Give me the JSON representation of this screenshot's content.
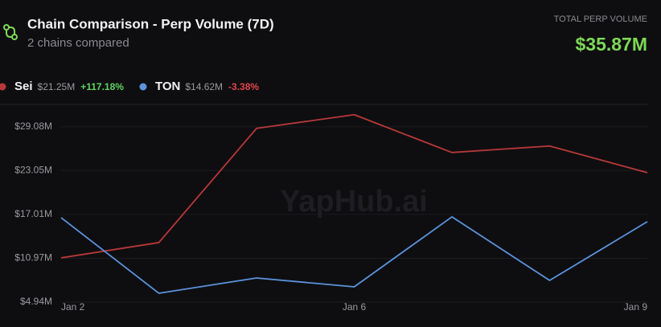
{
  "header": {
    "title": "Chain Comparison - Perp Volume (7D)",
    "subtitle": "2 chains compared",
    "total_label": "TOTAL PERP VOLUME",
    "total_value": "$35.87M"
  },
  "watermark": "YapHub.ai",
  "chart_data": {
    "type": "line",
    "categories": [
      "Jan 2",
      null,
      null,
      "Jan 6",
      null,
      null,
      "Jan 9"
    ],
    "series": [
      {
        "name": "Sei",
        "color": "#b8383a",
        "legend_value": "$21.25M",
        "change": "+117.18%",
        "change_color": "#5fd35f",
        "values": [
          11.03,
          13.13,
          28.85,
          30.73,
          25.53,
          26.42,
          22.76
        ]
      },
      {
        "name": "TON",
        "color": "#5b93dd",
        "legend_value": "$14.62M",
        "change": "-3.38%",
        "change_color": "#e0464a",
        "values": [
          16.56,
          6.16,
          8.26,
          7.04,
          16.67,
          7.93,
          16.01
        ]
      }
    ],
    "ylim": [
      4.94,
      31.7
    ],
    "yticks": [
      {
        "value": 4.94,
        "label": "$4.94M"
      },
      {
        "value": 10.97,
        "label": "$10.97M"
      },
      {
        "value": 17.01,
        "label": "$17.01M"
      },
      {
        "value": 23.05,
        "label": "$23.05M"
      },
      {
        "value": 29.08,
        "label": "$29.08M"
      }
    ],
    "grid": true
  }
}
